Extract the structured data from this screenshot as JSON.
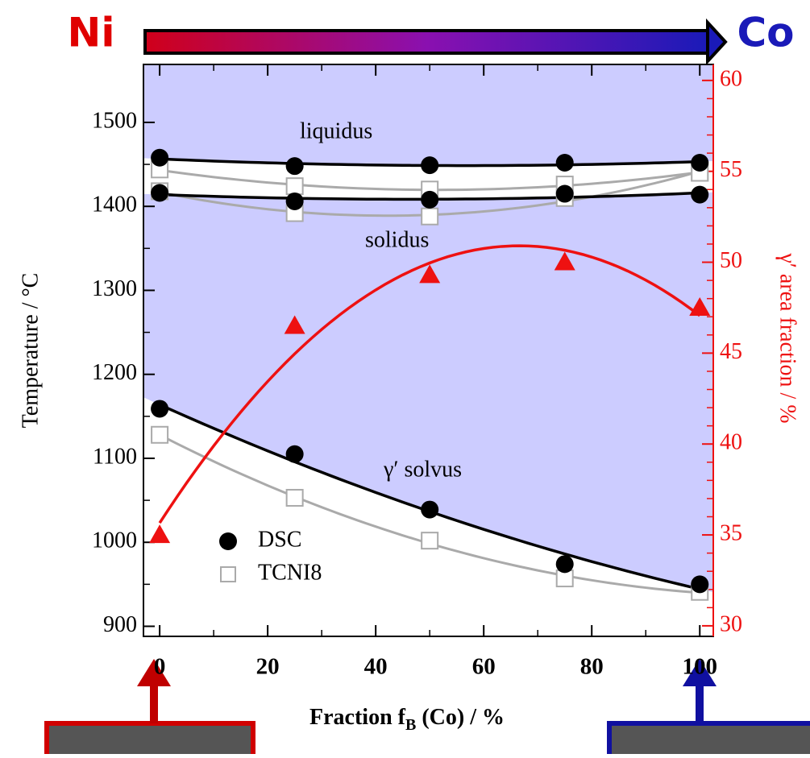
{
  "chart_data": {
    "type": "scatter",
    "header": {
      "left": "Ni",
      "right": "Co"
    },
    "x_label": {
      "before": "Fraction f",
      "sub": "B",
      "after": " (Co) / %"
    },
    "y_label": "Temperature / °C",
    "y2_label": "γ′ area fraction / %",
    "annotations": [
      "liquidus",
      "solidus",
      "γ′ solvus"
    ],
    "x": [
      0,
      25,
      50,
      75,
      100
    ],
    "xlim": [
      -3,
      102.5
    ],
    "xticks": [
      0,
      20,
      40,
      60,
      80,
      100
    ],
    "ylim": [
      888,
      1569
    ],
    "yticks": [
      900,
      1000,
      1100,
      1200,
      1300,
      1400,
      1500
    ],
    "y2lim": [
      29.42,
      60.88
    ],
    "y2ticks": [
      30,
      35,
      40,
      45,
      50,
      55,
      60
    ],
    "series": [
      {
        "name": "DSC",
        "color": "#000000",
        "marker": "circle",
        "liquidus": [
          1458,
          1448,
          1449,
          1452,
          1452
        ],
        "solidus": [
          1416,
          1406,
          1408,
          1415,
          1414
        ],
        "solvus": [
          1159,
          1105,
          1039,
          974,
          950
        ]
      },
      {
        "name": "TCNI8",
        "color": "#aaaaaa",
        "marker": "square",
        "liquidus": [
          1444,
          1424,
          1420,
          1426,
          1440
        ],
        "solidus": [
          1418,
          1392,
          1388,
          1410,
          1440
        ],
        "solvus": [
          1128,
          1053,
          1002,
          957,
          941
        ]
      }
    ],
    "gamma_prime": {
      "color": "#ee1111",
      "axis": "y2",
      "marker": "triangle",
      "values": [
        35,
        46.5,
        49.3,
        50,
        47.5
      ]
    },
    "shade_color": "#ccccff"
  }
}
